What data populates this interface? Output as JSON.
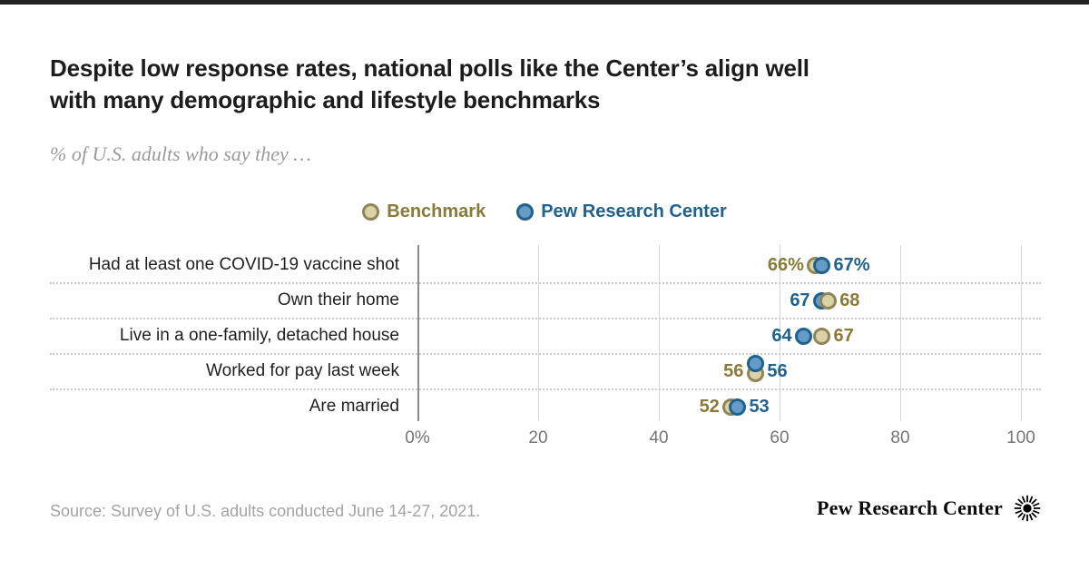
{
  "header": {
    "title_lines": [
      "Despite low response rates, national polls like the Center’s align well",
      "with many demographic and lifestyle benchmarks"
    ],
    "subtitle": "% of U.S. adults who say they …"
  },
  "legend": {
    "benchmark": "Benchmark",
    "pew": "Pew Research Center"
  },
  "colors": {
    "benchmark_fill": "#d9d2a7",
    "benchmark_stroke": "#8f8557",
    "benchmark_text": "#8a7a38",
    "pew_fill": "#649bc7",
    "pew_stroke": "#20618e",
    "pew_text": "#20618e"
  },
  "chart_data": {
    "type": "scatter",
    "variant": "horizontal-dot-plot",
    "title": "Despite low response rates, national polls like the Center’s align well with many demographic and lifestyle benchmarks",
    "subtitle": "% of U.S. adults who say they …",
    "categories": [
      "Had at least one COVID-19 vaccine shot",
      "Own their home",
      "Live in a one-family, detached house",
      "Worked for pay last week",
      "Are married"
    ],
    "series": [
      {
        "name": "Benchmark",
        "values": [
          66,
          68,
          67,
          56,
          52
        ],
        "labels": [
          "66%",
          "68",
          "67",
          "56",
          "52"
        ]
      },
      {
        "name": "Pew Research Center",
        "values": [
          67,
          67,
          64,
          56,
          53
        ],
        "labels": [
          "67%",
          "67",
          "64",
          "56",
          "53"
        ]
      }
    ],
    "xlim": [
      0,
      100
    ],
    "xticks": [
      "0%",
      "20",
      "40",
      "60",
      "80",
      "100"
    ],
    "xtick_values": [
      0,
      20,
      40,
      60,
      80,
      100
    ],
    "grid": "vertical",
    "legend_position": "top"
  },
  "footer": {
    "source": "Source: Survey of U.S. adults conducted June 14-27, 2021.",
    "brand": "Pew Research Center"
  }
}
